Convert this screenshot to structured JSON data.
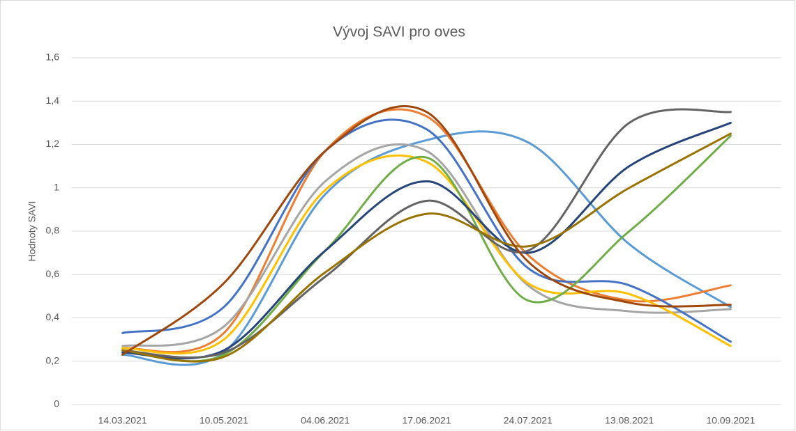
{
  "chart_data": {
    "type": "line",
    "title": "Vývoj SAVI pro oves",
    "y_label": "Hodnoty SAVI",
    "categories": [
      "14.03.2021",
      "10.05.2021",
      "04.06.2021",
      "17.06.2021",
      "24.07.2021",
      "13.08.2021",
      "10.09.2021"
    ],
    "ylim": [
      0,
      1.6
    ],
    "yticks": [
      0,
      {
        "value": 0.2,
        "label": "0,2"
      },
      {
        "value": 0.4,
        "label": "0,4"
      },
      {
        "value": 0.6,
        "label": "0,6"
      },
      {
        "value": 0.8,
        "label": "0,8"
      },
      1,
      {
        "value": 1.2,
        "label": "1,2"
      },
      {
        "value": 1.4,
        "label": "1,4"
      },
      {
        "value": 1.6,
        "label": "1,6"
      }
    ],
    "grid": true,
    "smooth": true,
    "series": [
      {
        "color": "#5b9bd5",
        "values": [
          0.23,
          0.24,
          0.97,
          1.22,
          1.21,
          0.74,
          0.45
        ]
      },
      {
        "color": "#ed7d31",
        "values": [
          0.26,
          0.33,
          1.17,
          1.33,
          0.69,
          0.48,
          0.55
        ]
      },
      {
        "color": "#a5a5a5",
        "values": [
          0.27,
          0.36,
          1.03,
          1.17,
          0.55,
          0.43,
          0.44
        ]
      },
      {
        "color": "#ffc000",
        "values": [
          0.26,
          0.3,
          0.99,
          1.12,
          0.56,
          0.51,
          0.27
        ]
      },
      {
        "color": "#4472c4",
        "values": [
          0.33,
          0.45,
          1.17,
          1.27,
          0.63,
          0.55,
          0.29
        ]
      },
      {
        "color": "#70ad47",
        "values": [
          0.25,
          0.23,
          0.71,
          1.14,
          0.48,
          0.8,
          1.24
        ]
      },
      {
        "color": "#264478",
        "values": [
          0.24,
          0.25,
          0.71,
          1.03,
          0.7,
          1.1,
          1.3
        ]
      },
      {
        "color": "#636363",
        "values": [
          0.25,
          0.24,
          0.59,
          0.94,
          0.71,
          1.3,
          1.35
        ]
      },
      {
        "color": "#997300",
        "values": [
          0.25,
          0.22,
          0.61,
          0.88,
          0.73,
          1.0,
          1.25
        ]
      },
      {
        "color": "#9e480e",
        "values": [
          0.23,
          0.56,
          1.17,
          1.35,
          0.66,
          0.47,
          0.46
        ]
      }
    ]
  }
}
